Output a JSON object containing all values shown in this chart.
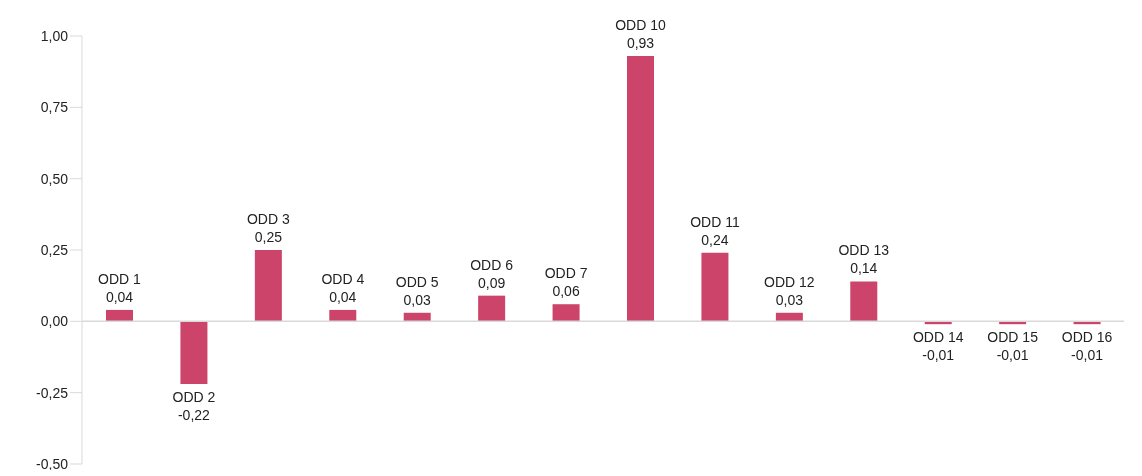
{
  "chart_data": {
    "type": "bar",
    "categories": [
      "ODD 1",
      "ODD 2",
      "ODD 3",
      "ODD 4",
      "ODD 5",
      "ODD 6",
      "ODD 7",
      "ODD 10",
      "ODD 11",
      "ODD 12",
      "ODD 13",
      "ODD 14",
      "ODD 15",
      "ODD 16"
    ],
    "values": [
      0.04,
      -0.22,
      0.25,
      0.04,
      0.03,
      0.09,
      0.06,
      0.93,
      0.24,
      0.03,
      0.14,
      -0.01,
      -0.01,
      -0.01
    ],
    "value_labels": [
      "0,04",
      "-0,22",
      "0,25",
      "0,04",
      "0,03",
      "0,09",
      "0,06",
      "0,93",
      "0,24",
      "0,03",
      "0,14",
      "-0,01",
      "-0,01",
      "-0,01"
    ],
    "color": "#cc4469",
    "ylim": [
      -0.5,
      1
    ],
    "yticks": [
      {
        "value": -0.5,
        "label": "-0,50"
      },
      {
        "value": -0.25,
        "label": "-0,25"
      },
      {
        "value": 0,
        "label": "0,00"
      },
      {
        "value": 0.25,
        "label": "0,25"
      },
      {
        "value": 0.5,
        "label": "0,50"
      },
      {
        "value": 0.75,
        "label": "0,75"
      },
      {
        "value": 1,
        "label": "1,00"
      }
    ],
    "grid": false,
    "legend": false,
    "tick_labels": "y"
  }
}
